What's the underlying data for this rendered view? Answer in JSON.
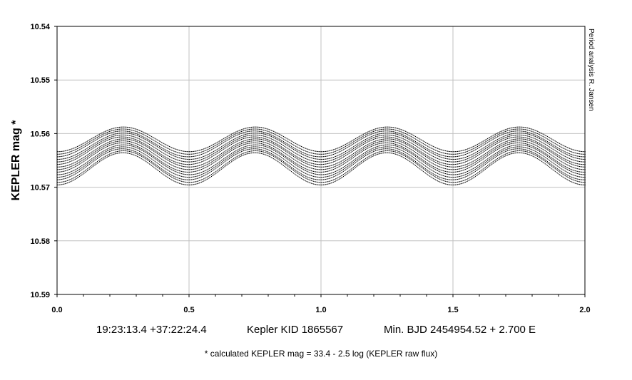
{
  "chart_data": {
    "type": "scatter",
    "ylabel": "KEPLER mag *",
    "xlim": [
      0.0,
      2.0
    ],
    "ylim": [
      10.54,
      10.59
    ],
    "y_inverted": true,
    "grid": true,
    "x_ticks": [
      "0.0",
      "0.5",
      "1.0",
      "1.5",
      "2.0"
    ],
    "y_ticks": [
      "10.54",
      "10.55",
      "10.56",
      "10.57",
      "10.58",
      "10.59"
    ],
    "y_tick_values": [
      10.54,
      10.55,
      10.56,
      10.57,
      10.58,
      10.59
    ],
    "x_tick_values": [
      0.0,
      0.5,
      1.0,
      1.5,
      2.0
    ],
    "series": [
      {
        "values_description_free": true,
        "phase_of_max_brightness": [
          0.25,
          0.75,
          1.25,
          1.75
        ],
        "phase_of_min_brightness": [
          0.0,
          0.5,
          1.0,
          1.5,
          2.0
        ],
        "mag_at_max_brightness_range": [
          10.5587,
          10.5635
        ],
        "mag_at_min_brightness_range": [
          10.5633,
          10.5695
        ],
        "number_of_tracks": 14
      }
    ],
    "point_color": "#000000",
    "grid_color": "#c0c0c0"
  },
  "labels": {
    "coords": "19:23:13.4 +37:22:24.4",
    "kid": "Kepler KID 1865567",
    "ephemeris": "Min. BJD 2454954.52 + 2.700 E",
    "footnote": "* calculated KEPLER mag = 33.4 - 2.5 log (KEPLER raw flux)",
    "credit": "Period analysis  R. Jansen"
  }
}
